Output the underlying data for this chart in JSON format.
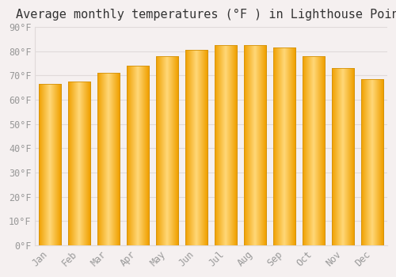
{
  "title": "Average monthly temperatures (°F ) in Lighthouse Point",
  "months": [
    "Jan",
    "Feb",
    "Mar",
    "Apr",
    "May",
    "Jun",
    "Jul",
    "Aug",
    "Sep",
    "Oct",
    "Nov",
    "Dec"
  ],
  "values": [
    66.5,
    67.5,
    71.0,
    74.0,
    78.0,
    80.5,
    82.5,
    82.5,
    81.5,
    78.0,
    73.0,
    68.5
  ],
  "bar_color_center": "#FFD070",
  "bar_color_edge": "#F5A800",
  "bar_outline_color": "#D4920A",
  "ylim": [
    0,
    90
  ],
  "ytick_step": 10,
  "background_color": "#F5F0F0",
  "plot_bg_color": "#F5F0F0",
  "title_fontsize": 11,
  "tick_fontsize": 8.5,
  "tick_label_color": "#999999",
  "grid_color": "#E0DADA",
  "bar_width": 0.75
}
